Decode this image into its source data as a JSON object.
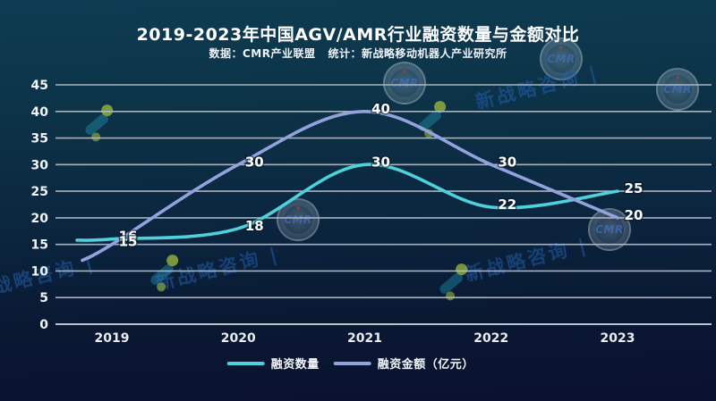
{
  "watermark": {
    "seal_text": "CMR",
    "brand_text": "新战略咨询",
    "divider": "|"
  },
  "chart_data": {
    "type": "line",
    "title": "2019-2023年中国AGV/AMR行业融资数量与金额对比",
    "subtitle": "数据：CMR产业联盟   统计：新战略移动机器人产业研究所",
    "categories": [
      "2019",
      "2020",
      "2021",
      "2022",
      "2023"
    ],
    "series": [
      {
        "name": "融资数量",
        "color": "#4ed1da",
        "values": [
          16,
          18,
          30,
          22,
          25
        ]
      },
      {
        "name": "融资金额（亿元）",
        "color": "#93a2dc",
        "values": [
          15,
          30,
          40,
          30,
          20
        ]
      }
    ],
    "ylim": [
      0,
      45
    ],
    "ytick_step": 5,
    "grid": true,
    "legend_position": "bottom",
    "colors": {
      "background_top": "#0e3c52",
      "background_bottom": "#0a1130",
      "gridline": "#b6bec8",
      "axis_line": "#ccd3db",
      "tick_label": "#f2f5f8",
      "data_label": "#ffffff"
    }
  }
}
